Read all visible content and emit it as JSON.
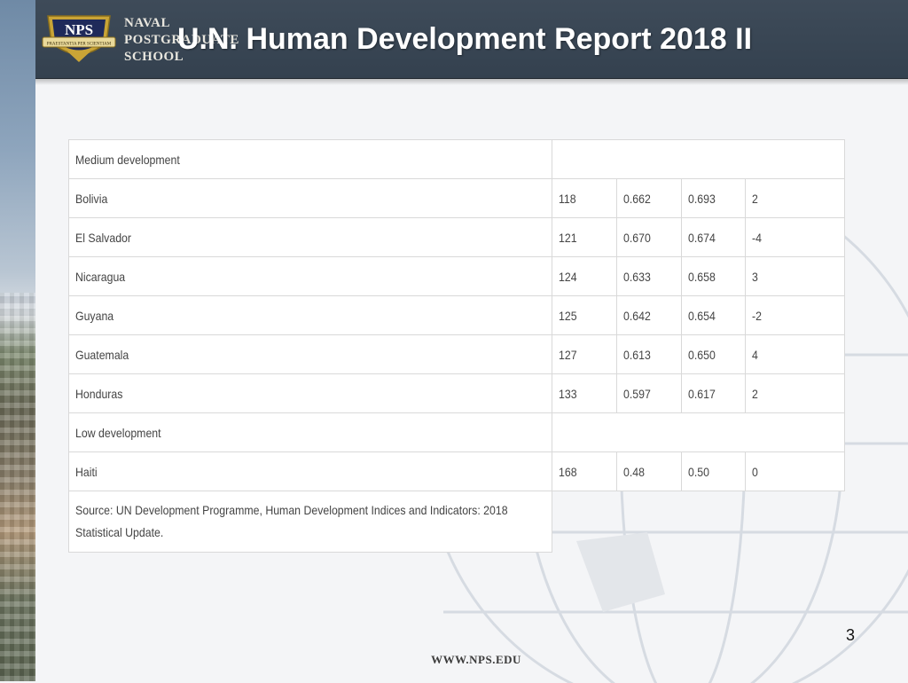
{
  "header": {
    "title": "U.N. Human Development Report 2018 II",
    "school_lines": [
      "NAVAL",
      "POSTGRADUATE",
      "SCHOOL"
    ],
    "logo_text": "NPS",
    "logo_motto": "PRAESTANTIA PER SCIENTIAM"
  },
  "table": {
    "rows": [
      {
        "type": "section",
        "label": "Medium development"
      },
      {
        "type": "data",
        "country": "Bolivia",
        "rank": "118",
        "v1": "0.662",
        "v2": "0.693",
        "change": "2"
      },
      {
        "type": "data",
        "country": "El Salvador",
        "rank": "121",
        "v1": "0.670",
        "v2": "0.674",
        "change": "-4"
      },
      {
        "type": "data",
        "country": "Nicaragua",
        "rank": "124",
        "v1": "0.633",
        "v2": "0.658",
        "change": "3"
      },
      {
        "type": "data",
        "country": "Guyana",
        "rank": "125",
        "v1": "0.642",
        "v2": "0.654",
        "change": "-2"
      },
      {
        "type": "data",
        "country": "Guatemala",
        "rank": "127",
        "v1": "0.613",
        "v2": "0.650",
        "change": "4"
      },
      {
        "type": "data",
        "country": "Honduras",
        "rank": "133",
        "v1": "0.597",
        "v2": "0.617",
        "change": "2"
      },
      {
        "type": "section",
        "label": "Low development"
      },
      {
        "type": "data",
        "country": "Haiti",
        "rank": "168",
        "v1": "0.48",
        "v2": "0.50",
        "change": "0"
      },
      {
        "type": "source",
        "label": "Source: UN Development Programme, Human Development Indices and Indicators: 2018 Statistical Update."
      }
    ]
  },
  "footer": {
    "page_number": "3",
    "url": "WWW.NPS.EDU"
  },
  "colors": {
    "header_bg": "#3e4b59",
    "title_text": "#ffffff",
    "logo_gold": "#c9a436",
    "logo_navy": "#1f2a5a"
  }
}
